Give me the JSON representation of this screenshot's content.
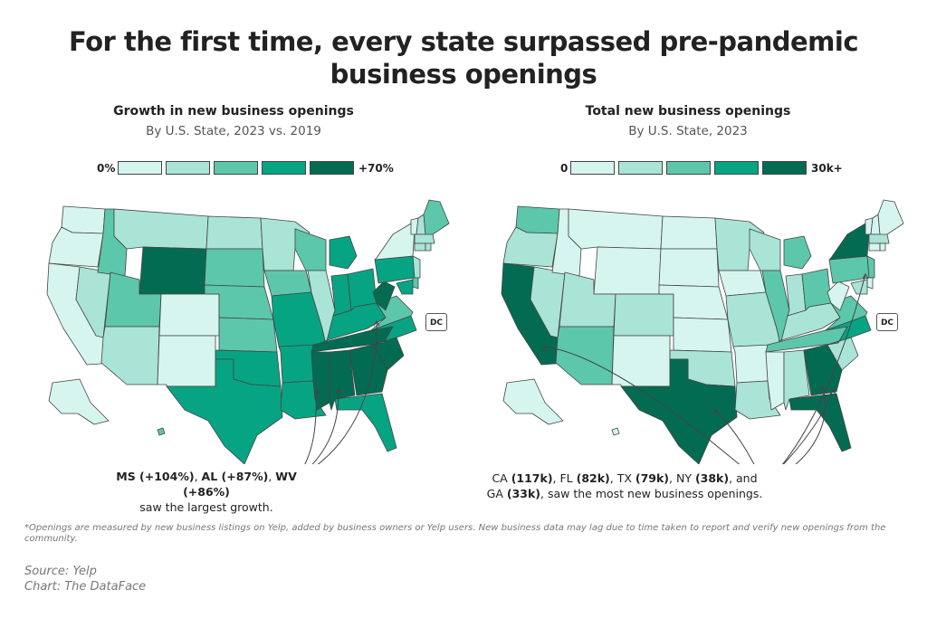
{
  "title_line1": "For the first time, every state surpassed pre-pandemic",
  "title_line2": "business openings",
  "left": {
    "title": "Growth in new business openings",
    "subtitle": "By U.S. State, 2023 vs. 2019",
    "legend_min": "0%",
    "legend_max": "+70%",
    "dc_label": "DC",
    "annotation": {
      "p1": "MS (+104%)",
      "s1": ", ",
      "p2": "AL (+87%)",
      "s2": ", ",
      "p3": "WV (+86%)",
      "line2": "saw the largest growth."
    }
  },
  "right": {
    "title": "Total new business openings",
    "subtitle": "By U.S. State, 2023",
    "legend_min": "0",
    "legend_max": "30k+",
    "dc_label": "DC",
    "annotation": {
      "t1": "CA ",
      "v1": "(117k)",
      "t2": ", FL ",
      "v2": "(82k)",
      "t3": ", TX ",
      "v3": "(79k)",
      "t4": ", NY ",
      "v4": "(38k)",
      "t5": ", and",
      "t6": "GA ",
      "v6": "(33k)",
      "t7": ", saw the most new business openings."
    }
  },
  "footnote": "*Openings are measured by new business listings on Yelp, added by business owners or Yelp users. New business data may lag due to time taken to report and verify new openings from the community.",
  "source": "Source: Yelp",
  "credit": "Chart: The DataFace",
  "colors": [
    "#d6f5ee",
    "#a9e4d6",
    "#5cc7aa",
    "#07a483",
    "#046b53"
  ],
  "chart_data": [
    {
      "type": "choropleth",
      "title": "Growth in new business openings",
      "subtitle": "By U.S. State, 2023 vs. 2019",
      "legend_labels": [
        "0%",
        "+70%"
      ],
      "bins": 5,
      "class_by_state": {
        "WA": 0,
        "OR": 0,
        "CA": 0,
        "NV": 1,
        "ID": 2,
        "MT": 1,
        "WY": 4,
        "UT": 2,
        "AZ": 1,
        "CO": 0,
        "NM": 0,
        "ND": 1,
        "SD": 2,
        "NE": 2,
        "KS": 2,
        "OK": 3,
        "TX": 3,
        "MN": 1,
        "IA": 2,
        "MO": 3,
        "AR": 3,
        "LA": 3,
        "WI": 2,
        "IL": 1,
        "MI": 3,
        "IN": 3,
        "OH": 3,
        "KY": 3,
        "TN": 4,
        "MS": 4,
        "AL": 4,
        "GA": 4,
        "FL": 3,
        "SC": 4,
        "NC": 3,
        "VA": 2,
        "WV": 4,
        "PA": 3,
        "NY": 0,
        "VT": 0,
        "NH": 1,
        "ME": 2,
        "MA": 1,
        "CT": 1,
        "RI": 1,
        "NJ": 1,
        "DE": 2,
        "MD": 3,
        "DC": 0,
        "AK": 0,
        "HI": 2
      },
      "highlights": [
        "MS (+104%)",
        "AL (+87%)",
        "WV (+86%)"
      ]
    },
    {
      "type": "choropleth",
      "title": "Total new business openings",
      "subtitle": "By U.S. State, 2023",
      "legend_labels": [
        "0",
        "30k+"
      ],
      "bins": 5,
      "class_by_state": {
        "WA": 2,
        "OR": 1,
        "CA": 4,
        "NV": 1,
        "ID": 0,
        "MT": 0,
        "WY": 0,
        "UT": 1,
        "AZ": 2,
        "CO": 1,
        "NM": 0,
        "ND": 0,
        "SD": 0,
        "NE": 0,
        "KS": 0,
        "OK": 1,
        "TX": 4,
        "MN": 1,
        "IA": 0,
        "MO": 1,
        "AR": 0,
        "LA": 1,
        "WI": 1,
        "IL": 2,
        "MI": 2,
        "IN": 1,
        "OH": 2,
        "KY": 1,
        "TN": 2,
        "MS": 0,
        "AL": 1,
        "GA": 4,
        "FL": 4,
        "SC": 1,
        "NC": 3,
        "VA": 2,
        "WV": 0,
        "PA": 2,
        "NY": 4,
        "VT": 0,
        "NH": 0,
        "ME": 0,
        "MA": 1,
        "CT": 0,
        "RI": 0,
        "NJ": 2,
        "DE": 0,
        "MD": 1,
        "DC": 0,
        "AK": 0,
        "HI": 0
      },
      "highlights": [
        "CA (117k)",
        "FL (82k)",
        "TX (79k)",
        "NY (38k)",
        "GA (33k)"
      ]
    }
  ]
}
